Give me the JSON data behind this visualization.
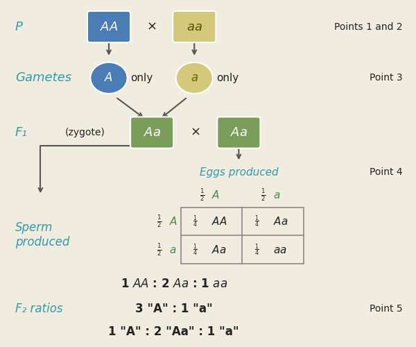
{
  "bg_color": "#f0ede0",
  "blue_box_color": "#4a7db5",
  "yellow_box_color": "#d4c97a",
  "green_box_color": "#7a9e5a",
  "blue_circle_color": "#4a7db5",
  "yellow_circle_color": "#d4c97a",
  "cyan_label_color": "#3399aa",
  "green_text_color": "#4a8a4a",
  "dark_text_color": "#222222",
  "arrow_color": "#555555",
  "label_P": "P",
  "label_Gametes": "Gametes",
  "label_F1": "F₁",
  "label_F2_ratios": "F₂ ratios",
  "label_Sperm": "Sperm\nproduced",
  "label_Eggs": "Eggs produced",
  "label_points12": "Points 1 and 2",
  "label_point3": "Point 3",
  "label_point4": "Point 4",
  "label_point5": "Point 5",
  "ratio_line1": "1 $AA$ : 2 $Aa$ : 1 $aa$",
  "ratio_line2": "3 \"A\" : 1 \"a\"",
  "ratio_line3": "1 \"A\" : 2 \"Aa\" : 1 \"a\""
}
